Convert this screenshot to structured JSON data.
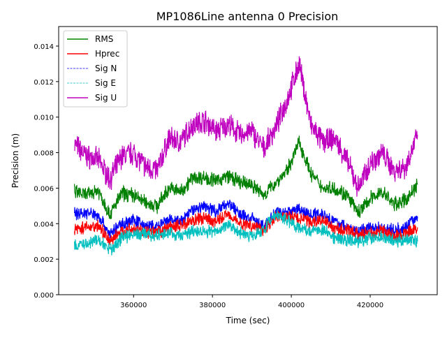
{
  "chart_data": {
    "type": "line",
    "title": "MP1086Line antenna 0 Precision",
    "xlabel": "Time (sec)",
    "ylabel": "Precision (m)",
    "xlim": [
      341000,
      437000
    ],
    "ylim": [
      0,
      0.0151
    ],
    "xticks": [
      360000,
      380000,
      400000,
      420000
    ],
    "xtick_labels": [
      "360000",
      "380000",
      "400000",
      "420000"
    ],
    "yticks": [
      0,
      0.002,
      0.004,
      0.006,
      0.008,
      0.01,
      0.012,
      0.014
    ],
    "ytick_labels": [
      "0.000",
      "0.002",
      "0.004",
      "0.006",
      "0.008",
      "0.010",
      "0.012",
      "0.014"
    ],
    "grid": false,
    "legend_position": "top-left",
    "x": [
      345000,
      348000,
      351000,
      354000,
      357000,
      360000,
      363000,
      366000,
      369000,
      372000,
      375000,
      378000,
      381000,
      384000,
      387000,
      390000,
      393000,
      396000,
      399000,
      402000,
      405000,
      408000,
      411000,
      414000,
      417000,
      420000,
      423000,
      426000,
      429000,
      432000
    ],
    "series": [
      {
        "name": "RMS",
        "color": "#008000",
        "style": "solid",
        "values": [
          0.0058,
          0.0056,
          0.0059,
          0.0045,
          0.0057,
          0.0056,
          0.0052,
          0.005,
          0.006,
          0.0058,
          0.0066,
          0.0066,
          0.0064,
          0.0067,
          0.0063,
          0.0062,
          0.0056,
          0.0063,
          0.007,
          0.0086,
          0.0068,
          0.006,
          0.006,
          0.0056,
          0.0046,
          0.0054,
          0.0058,
          0.0051,
          0.0053,
          0.0062
        ]
      },
      {
        "name": "Hprec",
        "color": "#ff0000",
        "style": "solid",
        "values": [
          0.0037,
          0.0038,
          0.0039,
          0.003,
          0.0036,
          0.0037,
          0.0035,
          0.0035,
          0.0038,
          0.0039,
          0.0042,
          0.0043,
          0.0041,
          0.0046,
          0.004,
          0.0039,
          0.0037,
          0.0044,
          0.0044,
          0.0043,
          0.0041,
          0.0042,
          0.0037,
          0.0036,
          0.0034,
          0.0035,
          0.0036,
          0.0033,
          0.0034,
          0.0038
        ]
      },
      {
        "name": "Sig N",
        "color": "#0000ff",
        "style": "dashed",
        "values": [
          0.0046,
          0.0046,
          0.0045,
          0.0034,
          0.004,
          0.0042,
          0.0039,
          0.0038,
          0.0042,
          0.0041,
          0.0048,
          0.005,
          0.0047,
          0.0052,
          0.0045,
          0.0043,
          0.0038,
          0.0046,
          0.0047,
          0.0048,
          0.0045,
          0.0046,
          0.0041,
          0.0038,
          0.0035,
          0.0038,
          0.0038,
          0.0036,
          0.0038,
          0.0044
        ]
      },
      {
        "name": "Sig E",
        "color": "#00bfbf",
        "style": "dashed",
        "values": [
          0.0027,
          0.0029,
          0.0031,
          0.0025,
          0.0032,
          0.0034,
          0.0034,
          0.0033,
          0.0035,
          0.0033,
          0.0036,
          0.0036,
          0.0035,
          0.004,
          0.0035,
          0.0033,
          0.0037,
          0.0045,
          0.0042,
          0.0038,
          0.0036,
          0.0037,
          0.0032,
          0.0031,
          0.003,
          0.0032,
          0.0033,
          0.003,
          0.0031,
          0.003
        ]
      },
      {
        "name": "Sig U",
        "color": "#bf00bf",
        "style": "solid",
        "values": [
          0.0085,
          0.0078,
          0.0076,
          0.0065,
          0.0078,
          0.008,
          0.0072,
          0.007,
          0.0088,
          0.0086,
          0.0096,
          0.0098,
          0.0092,
          0.0096,
          0.009,
          0.0092,
          0.0082,
          0.0094,
          0.011,
          0.013,
          0.0095,
          0.0086,
          0.0088,
          0.0076,
          0.006,
          0.0074,
          0.008,
          0.007,
          0.0072,
          0.009
        ]
      }
    ]
  }
}
